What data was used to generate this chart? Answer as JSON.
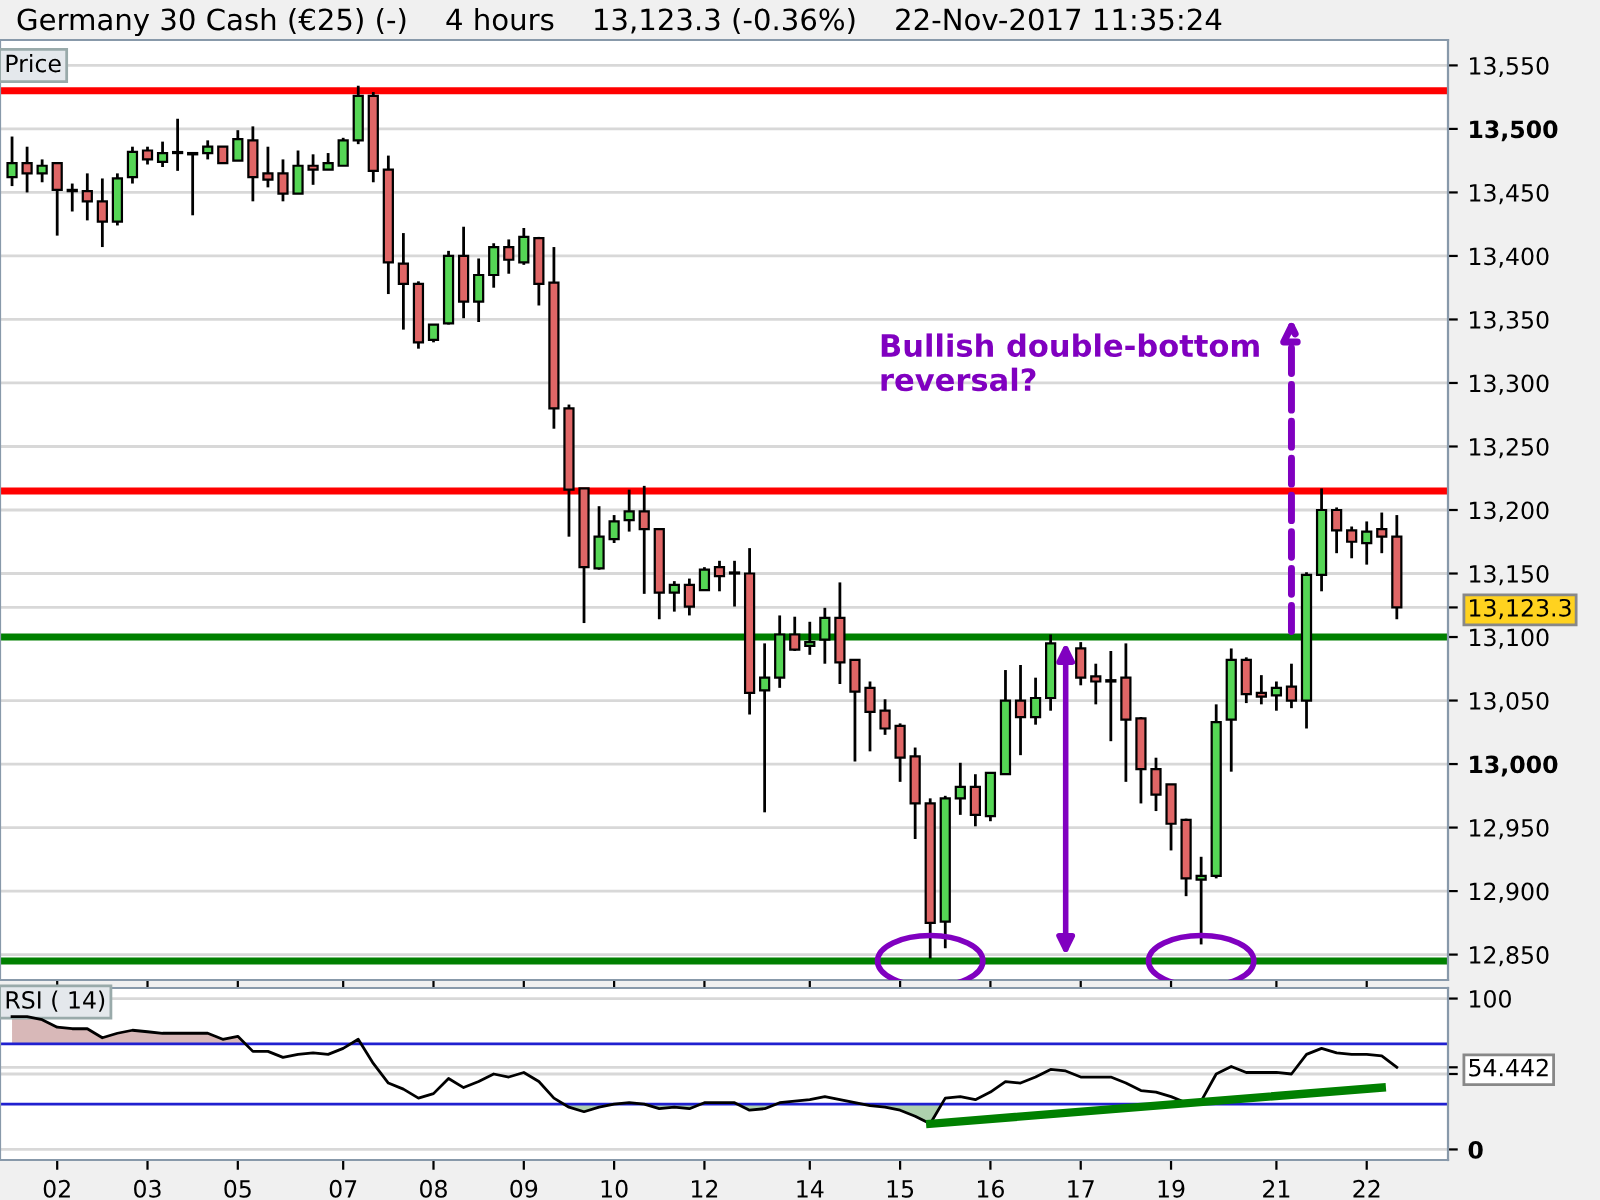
{
  "chart_data": [
    {
      "type": "candlestick",
      "title": "Germany 30 Cash (€25) (-)    4 hours    13,123.3 (-0.36%)    22-Nov-2017 11:35:24",
      "ylabel": "Price",
      "categories": [
        null,
        null,
        null,
        "02",
        null,
        null,
        null,
        null,
        null,
        "03",
        null,
        null,
        null,
        null,
        null,
        "05",
        null,
        null,
        null,
        null,
        null,
        null,
        "07",
        null,
        null,
        null,
        null,
        null,
        "08",
        null,
        null,
        null,
        null,
        null,
        "09",
        null,
        null,
        null,
        null,
        null,
        "10",
        null,
        null,
        null,
        null,
        null,
        "12",
        null,
        null,
        null,
        null,
        null,
        null,
        "14",
        null,
        null,
        null,
        null,
        null,
        "15",
        null,
        null,
        null,
        null,
        null,
        "16",
        null,
        null,
        null,
        null,
        null,
        "17",
        null,
        null,
        null,
        null,
        null,
        "19",
        null,
        null,
        null,
        null,
        null,
        null,
        "21",
        null,
        null,
        null,
        null,
        null,
        "22",
        null,
        null
      ],
      "ohlc": [
        [
          13462,
          13494,
          13455,
          13473
        ],
        [
          13473,
          13486,
          13450,
          13465
        ],
        [
          13465,
          13476,
          13458,
          13471
        ],
        [
          13473,
          13473,
          13416,
          13452
        ],
        [
          13452,
          13457,
          13435,
          13451
        ],
        [
          13451,
          13465,
          13428,
          13443
        ],
        [
          13443,
          13461,
          13407,
          13427
        ],
        [
          13427,
          13465,
          13424,
          13461
        ],
        [
          13462,
          13486,
          13457,
          13482
        ],
        [
          13483,
          13486,
          13472,
          13476
        ],
        [
          13474,
          13490,
          13470,
          13481
        ],
        [
          13481,
          13508,
          13467,
          13481
        ],
        [
          13481,
          13481,
          13432,
          13480
        ],
        [
          13481,
          13491,
          13476,
          13486
        ],
        [
          13486,
          13486,
          13473,
          13473
        ],
        [
          13475,
          13499,
          13475,
          13492
        ],
        [
          13491,
          13502,
          13443,
          13462
        ],
        [
          13465,
          13486,
          13454,
          13460
        ],
        [
          13465,
          13476,
          13443,
          13449
        ],
        [
          13449,
          13483,
          13449,
          13471
        ],
        [
          13471,
          13480,
          13456,
          13468
        ],
        [
          13468,
          13481,
          13468,
          13473
        ],
        [
          13471,
          13493,
          13471,
          13491
        ],
        [
          13491,
          13534,
          13488,
          13526
        ],
        [
          13526,
          13529,
          13458,
          13467
        ],
        [
          13468,
          13479,
          13370,
          13395
        ],
        [
          13394,
          13418,
          13342,
          13378
        ],
        [
          13378,
          13380,
          13327,
          13332
        ],
        [
          13334,
          13346,
          13332,
          13346
        ],
        [
          13347,
          13404,
          13346,
          13400
        ],
        [
          13400,
          13423,
          13351,
          13364
        ],
        [
          13364,
          13398,
          13348,
          13385
        ],
        [
          13385,
          13410,
          13375,
          13407
        ],
        [
          13407,
          13413,
          13386,
          13397
        ],
        [
          13395,
          13422,
          13393,
          13415
        ],
        [
          13414,
          13415,
          13361,
          13378
        ],
        [
          13379,
          13407,
          13264,
          13280
        ],
        [
          13280,
          13283,
          13179,
          13216
        ],
        [
          13217,
          13217,
          13111,
          13155
        ],
        [
          13154,
          13203,
          13153,
          13179
        ],
        [
          13177,
          13196,
          13174,
          13191
        ],
        [
          13192,
          13216,
          13183,
          13199
        ],
        [
          13199,
          13219,
          13134,
          13185
        ],
        [
          13185,
          13185,
          13114,
          13135
        ],
        [
          13135,
          13144,
          13120,
          13141
        ],
        [
          13141,
          13146,
          13117,
          13124
        ],
        [
          13137,
          13155,
          13137,
          13153
        ],
        [
          13155,
          13160,
          13136,
          13148
        ],
        [
          13150,
          13160,
          13124,
          13150
        ],
        [
          13150,
          13170,
          13039,
          13056
        ],
        [
          13058,
          13095,
          12962,
          13068
        ],
        [
          13068,
          13117,
          13060,
          13102
        ],
        [
          13102,
          13116,
          13089,
          13090
        ],
        [
          13093,
          13112,
          13086,
          13096
        ],
        [
          13098,
          13123,
          13079,
          13115
        ],
        [
          13115,
          13143,
          13063,
          13080
        ],
        [
          13082,
          13082,
          13002,
          13057
        ],
        [
          13060,
          13065,
          13010,
          13041
        ],
        [
          13042,
          13051,
          13023,
          13028
        ],
        [
          13030,
          13032,
          12986,
          13005
        ],
        [
          13006,
          13013,
          12941,
          12969
        ],
        [
          12969,
          12973,
          12847,
          12875
        ],
        [
          12876,
          12975,
          12855,
          12973
        ],
        [
          12973,
          13001,
          12960,
          12982
        ],
        [
          12982,
          12992,
          12951,
          12960
        ],
        [
          12959,
          12993,
          12955,
          12993
        ],
        [
          12992,
          13074,
          12992,
          13050
        ],
        [
          13050,
          13078,
          13007,
          13037
        ],
        [
          13037,
          13068,
          13031,
          13052
        ],
        [
          13052,
          13102,
          13042,
          13095
        ],
        null,
        [
          13091,
          13096,
          13062,
          13068
        ],
        [
          13069,
          13079,
          13047,
          13065
        ],
        [
          13066,
          13089,
          13018,
          13065
        ],
        [
          13068,
          13095,
          12986,
          13035
        ],
        [
          13036,
          13037,
          12969,
          12996
        ],
        [
          12996,
          13005,
          12963,
          12976
        ],
        [
          12984,
          12984,
          12932,
          12953
        ],
        [
          12956,
          12957,
          12896,
          12910
        ],
        [
          12909,
          12927,
          12858,
          12912
        ],
        [
          12912,
          13047,
          12910,
          13033
        ],
        [
          13035,
          13091,
          12994,
          13082
        ],
        [
          13082,
          13084,
          13048,
          13055
        ],
        [
          13056,
          13070,
          13047,
          13053
        ],
        [
          13054,
          13065,
          13042,
          13060
        ],
        [
          13061,
          13079,
          13044,
          13050
        ],
        [
          13050,
          13151,
          13028,
          13149
        ],
        [
          13149,
          13217,
          13136,
          13200
        ],
        [
          13200,
          13202,
          13166,
          13184
        ],
        [
          13184,
          13187,
          13162,
          13175
        ],
        [
          13174,
          13191,
          13157,
          13183
        ],
        [
          13185,
          13198,
          13166,
          13179
        ],
        [
          13179,
          13196,
          13114,
          13123.3
        ]
      ],
      "ylim": [
        12830,
        13570
      ],
      "yticks": [
        {
          "value": 12850,
          "label": "12,850"
        },
        {
          "value": 12900,
          "label": "12,900"
        },
        {
          "value": 12950,
          "label": "12,950"
        },
        {
          "value": 13000,
          "label": "13,000"
        },
        {
          "value": 13050,
          "label": "13,050"
        },
        {
          "value": 13100,
          "label": "13,100"
        },
        {
          "value": 13123.3,
          "label": "13,123.3"
        },
        {
          "value": 13150,
          "label": "13,150"
        },
        {
          "value": 13200,
          "label": "13,200"
        },
        {
          "value": 13250,
          "label": "13,250"
        },
        {
          "value": 13300,
          "label": "13,300"
        },
        {
          "value": 13350,
          "label": "13,350"
        },
        {
          "value": 13400,
          "label": "13,400"
        },
        {
          "value": 13450,
          "label": "13,450"
        },
        {
          "value": 13500,
          "label": "13,500"
        },
        {
          "value": 13550,
          "label": "13,550"
        }
      ],
      "grid": "y",
      "tick_labels": "y",
      "ref_lines": [
        {
          "axis": "y",
          "value": 13530,
          "color": "#ff0000"
        },
        {
          "axis": "y",
          "value": 13215,
          "color": "#ff0000"
        },
        {
          "axis": "y",
          "value": 13100,
          "color": "#008000"
        },
        {
          "axis": "y",
          "value": 12845,
          "color": "#008000"
        }
      ],
      "annotations": [
        "Bullish double-bottom\nreversal?"
      ]
    },
    {
      "type": "line",
      "ylabel": "RSI ( 14)",
      "categories": [
        null,
        null,
        null,
        "02",
        null,
        null,
        null,
        null,
        null,
        "03",
        null,
        null,
        null,
        null,
        null,
        "05",
        null,
        null,
        null,
        null,
        null,
        null,
        "07",
        null,
        null,
        null,
        null,
        null,
        "08",
        null,
        null,
        null,
        null,
        null,
        "09",
        null,
        null,
        null,
        null,
        null,
        "10",
        null,
        null,
        null,
        null,
        null,
        "12",
        null,
        null,
        null,
        null,
        null,
        null,
        "14",
        null,
        null,
        null,
        null,
        null,
        "15",
        null,
        null,
        null,
        null,
        null,
        "16",
        null,
        null,
        null,
        null,
        null,
        "17",
        null,
        null,
        null,
        null,
        null,
        "19",
        null,
        null,
        null,
        null,
        null,
        null,
        "21",
        null,
        null,
        null,
        null,
        null,
        "22",
        null,
        null
      ],
      "series": [
        {
          "color": "#000000",
          "values": [
            88,
            88,
            86,
            81,
            80,
            80,
            74,
            77,
            79,
            78,
            77,
            77,
            77,
            77,
            73,
            75,
            65,
            65,
            61,
            63,
            64,
            63,
            67,
            73,
            57,
            44,
            40,
            34,
            37,
            47,
            41,
            45,
            50,
            48,
            51,
            45,
            34,
            28,
            25,
            28,
            30,
            31,
            30,
            27,
            28,
            27,
            31,
            31,
            31,
            26,
            27,
            31,
            32,
            33,
            35,
            33,
            31,
            29,
            28,
            26,
            22,
            17,
            34,
            35,
            33,
            38,
            45,
            44,
            48,
            53,
            52,
            48,
            48,
            48,
            44,
            39,
            38,
            35,
            31,
            32,
            50,
            55,
            51,
            51,
            51,
            50,
            63,
            67,
            64,
            63,
            63,
            62,
            54.442
          ]
        },
        {
          "color": "#008000",
          "values": [
            null,
            null,
            null,
            null,
            null,
            null,
            null,
            null,
            null,
            null,
            null,
            null,
            null,
            null,
            null,
            null,
            null,
            null,
            null,
            null,
            null,
            null,
            null,
            null,
            null,
            null,
            null,
            null,
            null,
            null,
            null,
            null,
            null,
            null,
            null,
            null,
            null,
            null,
            null,
            null,
            null,
            null,
            null,
            null,
            null,
            null,
            null,
            null,
            null,
            null,
            null,
            null,
            null,
            null,
            null,
            null,
            null,
            null,
            null,
            null,
            null,
            17,
            null,
            null,
            null,
            null,
            null,
            null,
            null,
            null,
            null,
            null,
            null,
            null,
            null,
            null,
            null,
            null,
            null,
            null,
            null,
            null,
            null,
            null,
            null,
            null,
            null,
            null,
            null,
            null,
            null,
            41,
            null
          ]
        }
      ],
      "ylim": [
        -7,
        107
      ],
      "yticks": [
        0,
        {
          "value": 50,
          "label": null
        },
        {
          "value": 54.442,
          "label": "54.442"
        },
        100
      ],
      "grid": "y",
      "ref_lines": [
        {
          "axis": "y",
          "value": 70,
          "color": "#2020d0"
        },
        {
          "axis": "y",
          "value": 30,
          "color": "#2020d0"
        }
      ]
    }
  ]
}
